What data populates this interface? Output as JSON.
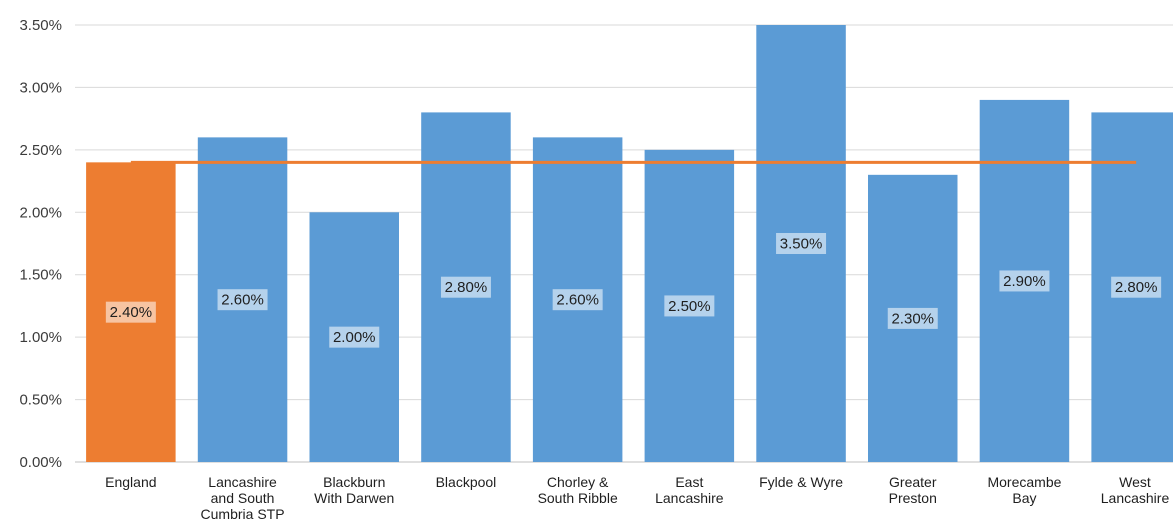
{
  "chart_data": {
    "type": "bar",
    "categories": [
      [
        "England"
      ],
      [
        "Lancashire",
        "and South",
        "Cumbria STP"
      ],
      [
        "Blackburn",
        "With Darwen"
      ],
      [
        "Blackpool"
      ],
      [
        "Chorley &",
        "South Ribble"
      ],
      [
        "East",
        "Lancashire"
      ],
      [
        "Fylde & Wyre"
      ],
      [
        "Greater",
        "Preston"
      ],
      [
        "Morecambe",
        "Bay"
      ],
      [
        "West",
        "Lancashire"
      ]
    ],
    "values": [
      2.4,
      2.6,
      2.0,
      2.8,
      2.6,
      2.5,
      3.5,
      2.3,
      2.9,
      2.8
    ],
    "data_labels": [
      "2.40%",
      "2.60%",
      "2.00%",
      "2.80%",
      "2.60%",
      "2.50%",
      "3.50%",
      "2.30%",
      "2.90%",
      "2.80%"
    ],
    "reference_line": 2.4,
    "highlight_index": 0,
    "yticks": [
      0,
      0.5,
      1.0,
      1.5,
      2.0,
      2.5,
      3.0,
      3.5
    ],
    "ytick_labels": [
      "0.00%",
      "0.50%",
      "1.00%",
      "1.50%",
      "2.00%",
      "2.50%",
      "3.00%",
      "3.50%"
    ],
    "ylim": [
      0,
      3.5
    ],
    "grid": true,
    "title": "",
    "xlabel": "",
    "ylabel": "",
    "colors": {
      "bar": "#5b9bd5",
      "highlight": "#ed7d31",
      "line": "#ed7d31",
      "grid": "#d9d9d9",
      "axis": "#bfbfbf",
      "label_box": "#ffffff"
    }
  }
}
